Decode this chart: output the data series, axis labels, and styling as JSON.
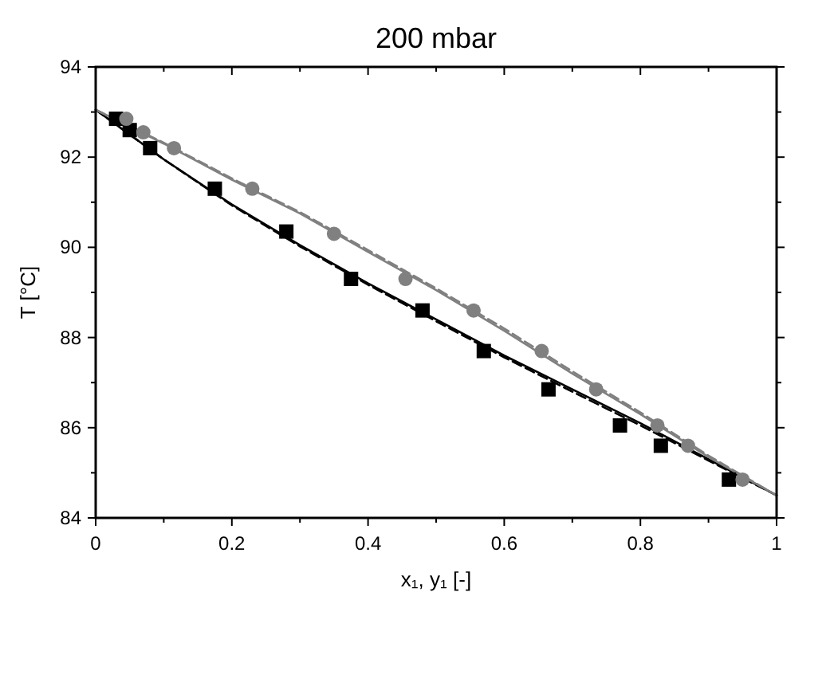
{
  "chart_data": {
    "type": "scatter",
    "title": "200 mbar",
    "xlabel": "x₁, y₁ [-]",
    "ylabel": "T [°C]",
    "xlim": [
      0,
      1
    ],
    "ylim": [
      84,
      94
    ],
    "xticks": [
      0,
      {
        "value": 0.1,
        "label": null
      },
      0.2,
      {
        "value": 0.3,
        "label": null
      },
      0.4,
      {
        "value": 0.5,
        "label": null
      },
      0.6,
      {
        "value": 0.7,
        "label": null
      },
      0.8,
      {
        "value": 0.9,
        "label": null
      },
      1
    ],
    "yticks": [
      84,
      {
        "value": 85,
        "label": null
      },
      86,
      {
        "value": 87,
        "label": null
      },
      88,
      {
        "value": 89,
        "label": null
      },
      90,
      {
        "value": 91,
        "label": null
      },
      92,
      {
        "value": 93,
        "label": null
      },
      94
    ],
    "grid": false,
    "series": [
      {
        "type": "line",
        "color": "#000000",
        "line_style": "solid",
        "x": [
          0,
          0.1,
          0.2,
          0.3,
          0.4,
          0.5,
          0.6,
          0.7,
          0.8,
          0.9,
          1
        ],
        "values": [
          93.05,
          91.95,
          90.95,
          90.05,
          89.2,
          88.4,
          87.6,
          86.85,
          86.1,
          85.3,
          84.5
        ]
      },
      {
        "type": "line",
        "color": "#000000",
        "line_style": "dashed",
        "x": [
          0,
          0.1,
          0.2,
          0.3,
          0.4,
          0.5,
          0.6,
          0.7,
          0.8,
          0.9,
          1
        ],
        "values": [
          93.05,
          91.95,
          90.93,
          90.02,
          89.17,
          88.36,
          87.56,
          86.8,
          86.05,
          85.27,
          84.5
        ]
      },
      {
        "type": "line",
        "color": "#808080",
        "line_style": "solid",
        "x": [
          0,
          0.1,
          0.2,
          0.3,
          0.4,
          0.5,
          0.6,
          0.7,
          0.8,
          0.9,
          1
        ],
        "values": [
          93.05,
          92.3,
          91.5,
          90.75,
          89.9,
          89.05,
          88.15,
          87.2,
          86.3,
          85.35,
          84.5
        ]
      },
      {
        "type": "line",
        "color": "#808080",
        "line_style": "dashed",
        "x": [
          0,
          0.1,
          0.2,
          0.3,
          0.4,
          0.5,
          0.6,
          0.7,
          0.8,
          0.9,
          1
        ],
        "values": [
          93.05,
          92.32,
          91.53,
          90.78,
          89.94,
          89.09,
          88.2,
          87.25,
          86.34,
          85.38,
          84.5
        ]
      },
      {
        "color": "#000000",
        "marker": "square",
        "x": [
          0.03,
          0.05,
          0.08,
          0.175,
          0.28,
          0.375,
          0.48,
          0.57,
          0.665,
          0.77,
          0.83,
          0.93
        ],
        "values": [
          92.85,
          92.6,
          92.2,
          91.3,
          90.35,
          89.3,
          88.6,
          87.7,
          86.85,
          86.05,
          85.6,
          84.85
        ]
      },
      {
        "color": "#808080",
        "marker": "circle",
        "x": [
          0.045,
          0.07,
          0.115,
          0.23,
          0.35,
          0.455,
          0.555,
          0.655,
          0.735,
          0.825,
          0.87,
          0.95
        ],
        "values": [
          92.85,
          92.55,
          92.2,
          91.3,
          90.3,
          89.3,
          88.6,
          87.7,
          86.85,
          86.05,
          85.6,
          84.85
        ]
      }
    ]
  }
}
